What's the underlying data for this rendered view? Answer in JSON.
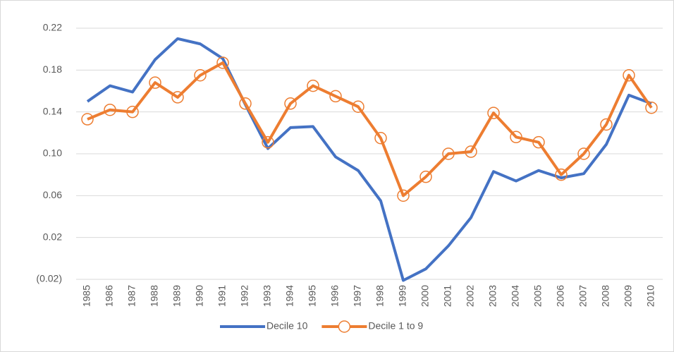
{
  "chart_data": {
    "type": "line",
    "categories": [
      "1985",
      "1986",
      "1987",
      "1988",
      "1989",
      "1990",
      "1991",
      "1992",
      "1993",
      "1994",
      "1995",
      "1996",
      "1997",
      "1998",
      "1999",
      "2000",
      "2001",
      "2002",
      "2003",
      "2004",
      "2005",
      "2006",
      "2007",
      "2008",
      "2009",
      "2010"
    ],
    "series": [
      {
        "name": "Decile 10",
        "color": "#4472c4",
        "marker": false,
        "values": [
          0.15,
          0.165,
          0.159,
          0.19,
          0.21,
          0.205,
          0.191,
          0.147,
          0.105,
          0.125,
          0.126,
          0.097,
          0.084,
          0.055,
          -0.021,
          -0.01,
          0.012,
          0.039,
          0.083,
          0.074,
          0.084,
          0.077,
          0.081,
          0.109,
          0.156,
          0.148
        ]
      },
      {
        "name": "Decile 1 to 9",
        "color": "#ed7d31",
        "marker": true,
        "values": [
          0.133,
          0.142,
          0.14,
          0.168,
          0.154,
          0.175,
          0.187,
          0.148,
          0.111,
          0.148,
          0.165,
          0.155,
          0.145,
          0.115,
          0.06,
          0.078,
          0.1,
          0.102,
          0.139,
          0.116,
          0.111,
          0.08,
          0.1,
          0.128,
          0.175,
          0.144
        ]
      }
    ],
    "ylim": [
      -0.02,
      0.22
    ],
    "yticks": [
      {
        "value": -0.02,
        "label": "(0.02)"
      },
      0.02,
      0.06,
      {
        "value": 0.1,
        "label": "0.10"
      },
      0.14,
      0.18,
      0.22
    ],
    "grid": true,
    "legend": "bottom"
  }
}
